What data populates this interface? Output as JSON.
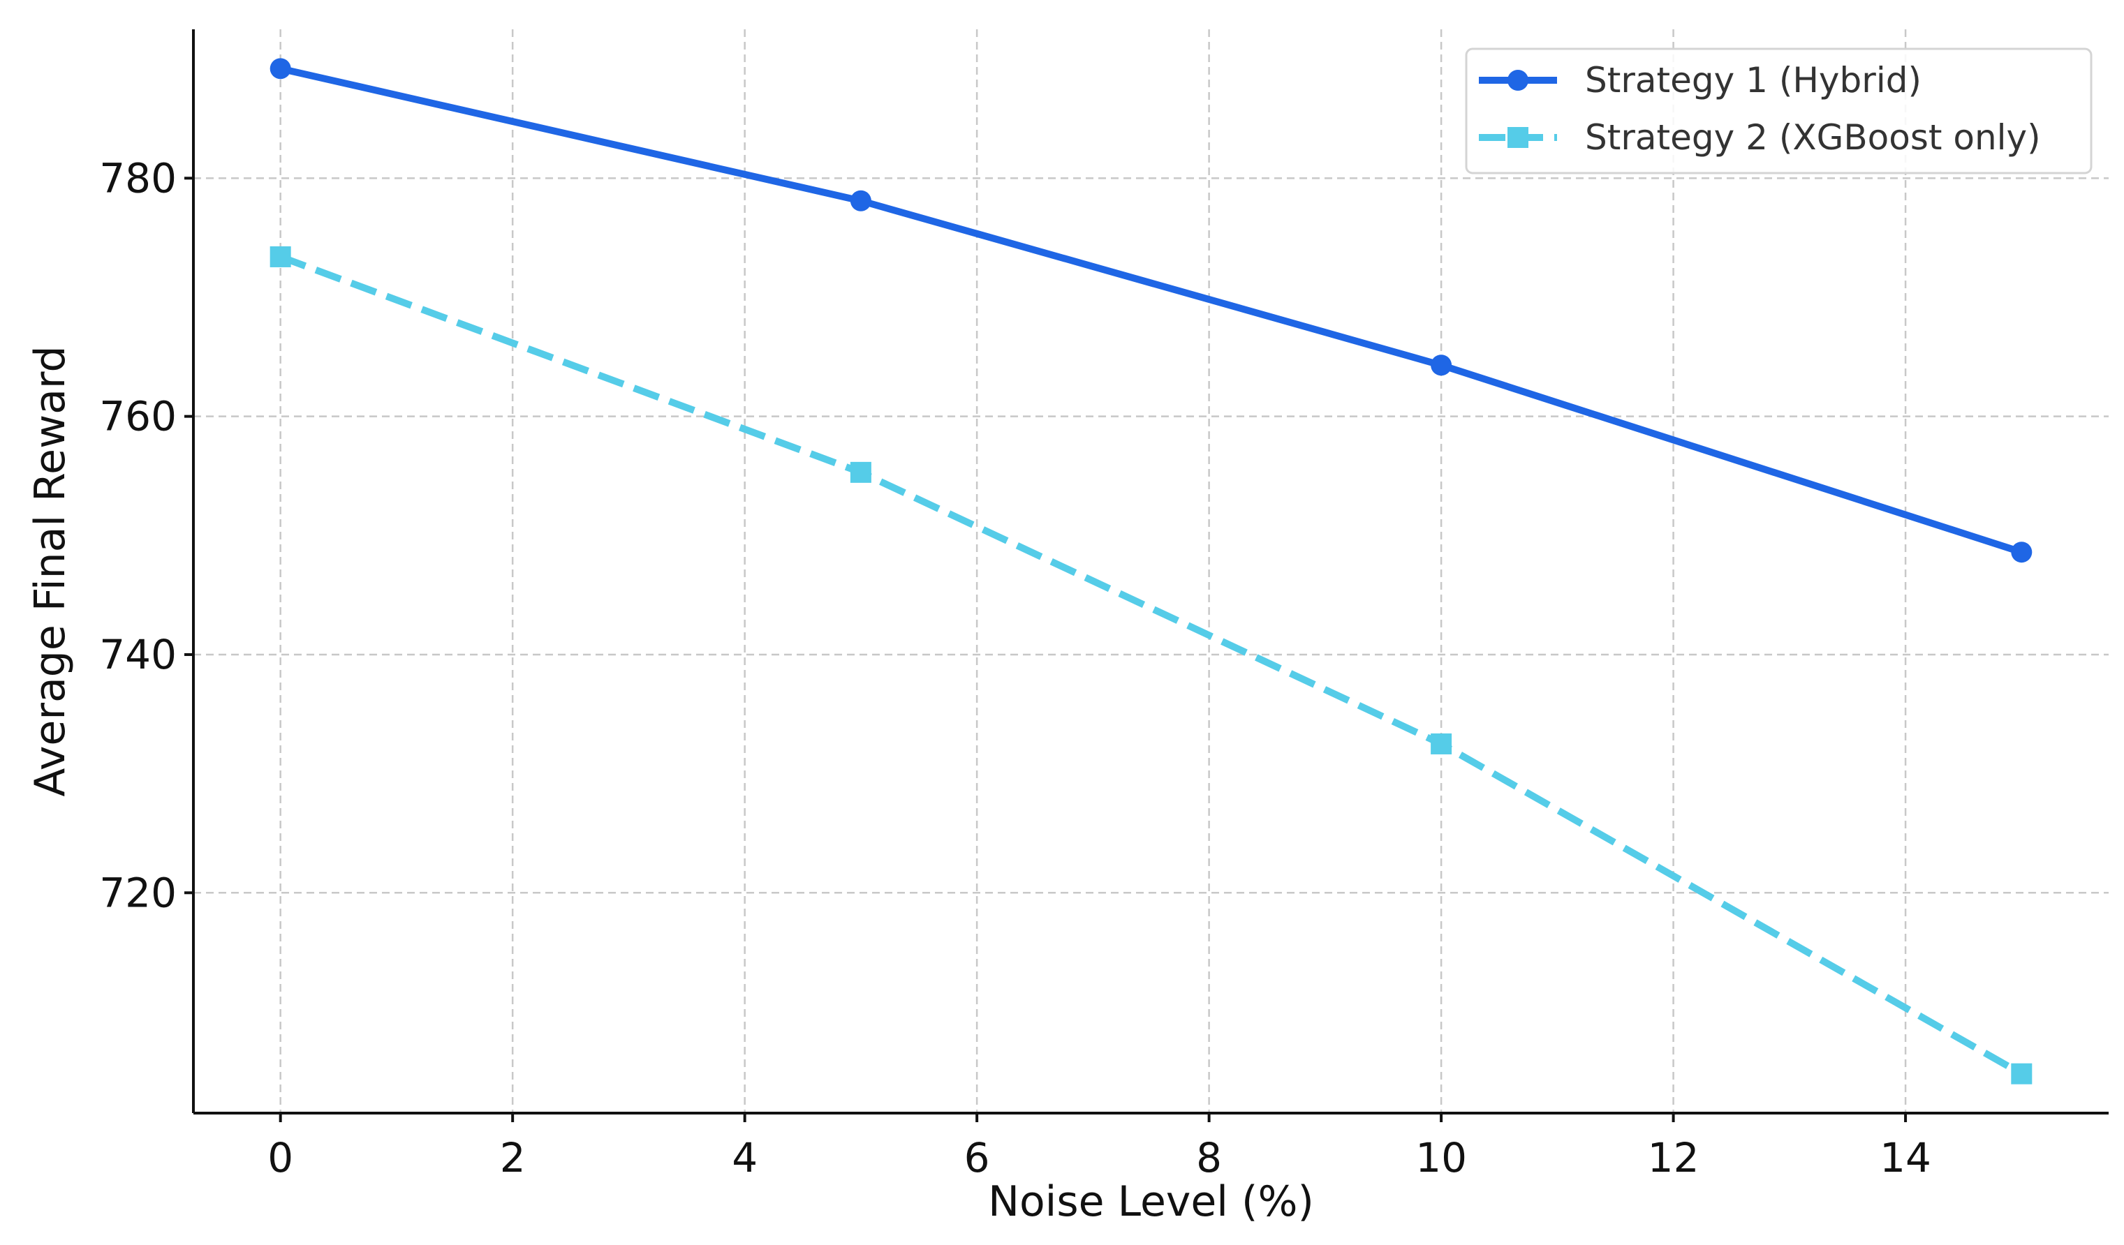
{
  "chart_data": {
    "type": "line",
    "title": "",
    "xlabel": "Noise Level (%)",
    "ylabel": "Average Final Reward",
    "x": [
      0,
      5,
      10,
      15
    ],
    "xlim": [
      -0.75,
      15.75
    ],
    "ylim": [
      701.5,
      792.5
    ],
    "xticks": [
      0,
      2,
      4,
      6,
      8,
      10,
      12,
      14
    ],
    "yticks": [
      720,
      740,
      760,
      780
    ],
    "grid": true,
    "legend_position": "top-right",
    "series": [
      {
        "name": "Strategy 1 (Hybrid)",
        "values": [
          789.2,
          778.1,
          764.3,
          748.6
        ],
        "color": "#1f66e5",
        "line_style": "solid",
        "marker": "circle"
      },
      {
        "name": "Strategy 2 (XGBoost only)",
        "values": [
          773.4,
          755.3,
          732.5,
          704.8
        ],
        "color": "#55cce8",
        "line_style": "dashed",
        "marker": "square"
      }
    ]
  }
}
